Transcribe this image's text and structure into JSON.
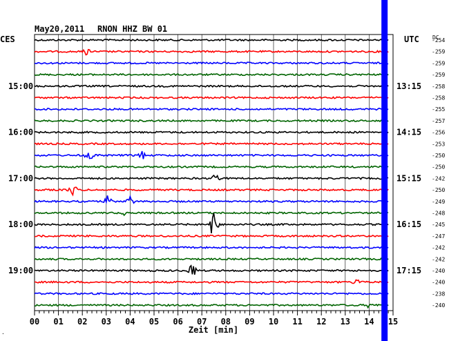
{
  "header": {
    "date": "May20,2011",
    "station": "RNON HHZ BW 01"
  },
  "left_axis_label": "CES",
  "right_axis_label": "UTC",
  "dc_label": "DC",
  "corner_mark": "·",
  "colors": {
    "trace_cycle": [
      "#000000",
      "#ff0000",
      "#0000ff",
      "#006400"
    ],
    "marker_bar": "#0000ff",
    "grid": "#000000"
  },
  "chart_data": {
    "type": "line",
    "xlabel": "Zeit [min]",
    "xlim": [
      0,
      15
    ],
    "x_ticks": [
      "00",
      "01",
      "02",
      "03",
      "04",
      "05",
      "06",
      "07",
      "08",
      "09",
      "10",
      "11",
      "12",
      "13",
      "14",
      "15"
    ],
    "rows": 24,
    "left_time_labels": [
      {
        "row": 4,
        "text": "15:00"
      },
      {
        "row": 8,
        "text": "16:00"
      },
      {
        "row": 12,
        "text": "17:00"
      },
      {
        "row": 16,
        "text": "18:00"
      },
      {
        "row": 20,
        "text": "19:00"
      }
    ],
    "right_time_labels": [
      {
        "row": 4,
        "text": "13:15"
      },
      {
        "row": 8,
        "text": "14:15"
      },
      {
        "row": 12,
        "text": "15:15"
      },
      {
        "row": 16,
        "text": "16:15"
      },
      {
        "row": 20,
        "text": "17:15"
      }
    ],
    "dc_offsets": [
      "-254",
      "-259",
      "-259",
      "-259",
      "-258",
      "-258",
      "-255",
      "-257",
      "-256",
      "-253",
      "-250",
      "-250",
      "-242",
      "-250",
      "-249",
      "-248",
      "-245",
      "-247",
      "-242",
      "-242",
      "-240",
      "-240",
      "-238",
      "-240"
    ],
    "events": [
      {
        "row": 1,
        "minute": 2.2,
        "amp": 0.35
      },
      {
        "row": 10,
        "minute": 2.3,
        "amp": 0.6
      },
      {
        "row": 10,
        "minute": 4.5,
        "amp": 0.45
      },
      {
        "row": 12,
        "minute": 7.6,
        "amp": 0.5
      },
      {
        "row": 13,
        "minute": 1.6,
        "amp": 0.55
      },
      {
        "row": 14,
        "minute": 3.1,
        "amp": 0.75
      },
      {
        "row": 14,
        "minute": 4.0,
        "amp": 0.4
      },
      {
        "row": 15,
        "minute": 3.8,
        "amp": 0.3
      },
      {
        "row": 16,
        "minute": 7.5,
        "amp": 1.3
      },
      {
        "row": 20,
        "minute": 6.6,
        "amp": 0.65
      },
      {
        "row": 21,
        "minute": 13.5,
        "amp": 0.3
      },
      {
        "row": 23,
        "minute": 14.0,
        "amp": 0.3
      }
    ],
    "marker_minute": 14.6
  }
}
